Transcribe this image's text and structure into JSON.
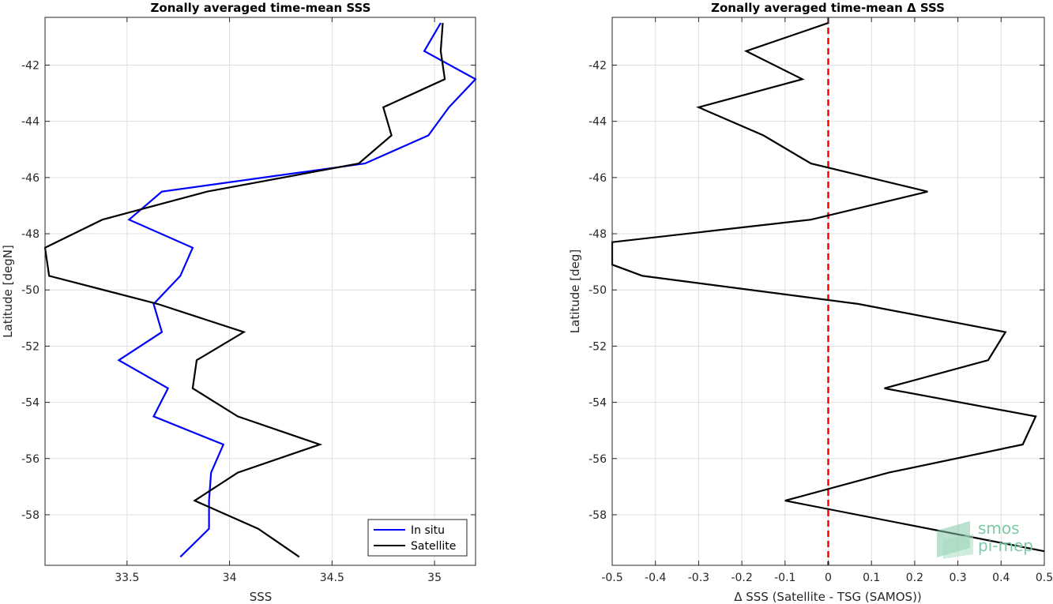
{
  "chart_data": [
    {
      "type": "line",
      "title": "Zonally averaged time-mean SSS",
      "xlabel": "SSS",
      "ylabel": "Latitude [degN]",
      "xlim": [
        33.1,
        35.2
      ],
      "ylim": [
        -59.8,
        -40.3
      ],
      "xticks": [
        33.5,
        34,
        34.5,
        35
      ],
      "xtick_labels": [
        "33.5",
        "34",
        "34.5",
        "35"
      ],
      "yticks": [
        -58,
        -56,
        -54,
        -52,
        -50,
        -48,
        -46,
        -44,
        -42
      ],
      "ytick_labels": [
        "-58",
        "-56",
        "-54",
        "-52",
        "-50",
        "-48",
        "-46",
        "-44",
        "-42"
      ],
      "grid": true,
      "legend": "bottom-right",
      "series": [
        {
          "name": "In situ",
          "color": "#0000ff",
          "points": [
            [
              35.03,
              -40.5
            ],
            [
              34.95,
              -41.5
            ],
            [
              35.2,
              -42.5
            ],
            [
              35.07,
              -43.5
            ],
            [
              34.97,
              -44.5
            ],
            [
              34.66,
              -45.5
            ],
            [
              33.67,
              -46.5
            ],
            [
              33.51,
              -47.5
            ],
            [
              33.82,
              -48.5
            ],
            [
              33.76,
              -49.5
            ],
            [
              33.63,
              -50.5
            ],
            [
              33.67,
              -51.5
            ],
            [
              33.46,
              -52.5
            ],
            [
              33.7,
              -53.5
            ],
            [
              33.63,
              -54.5
            ],
            [
              33.97,
              -55.5
            ],
            [
              33.91,
              -56.5
            ],
            [
              33.9,
              -57.5
            ],
            [
              33.9,
              -58.5
            ],
            [
              33.76,
              -59.5
            ]
          ]
        },
        {
          "name": "Satellite",
          "color": "#000000",
          "points": [
            [
              35.04,
              -40.5
            ],
            [
              35.03,
              -41.5
            ],
            [
              35.05,
              -42.5
            ],
            [
              34.75,
              -43.5
            ],
            [
              34.79,
              -44.5
            ],
            [
              34.63,
              -45.5
            ],
            [
              33.89,
              -46.5
            ],
            [
              33.38,
              -47.5
            ],
            [
              33.1,
              -48.5
            ],
            [
              33.12,
              -49.5
            ],
            [
              33.65,
              -50.5
            ],
            [
              34.07,
              -51.5
            ],
            [
              33.84,
              -52.5
            ],
            [
              33.82,
              -53.5
            ],
            [
              34.04,
              -54.5
            ],
            [
              34.44,
              -55.5
            ],
            [
              34.04,
              -56.5
            ],
            [
              33.83,
              -57.5
            ],
            [
              34.14,
              -58.5
            ],
            [
              34.34,
              -59.5
            ]
          ]
        }
      ]
    },
    {
      "type": "line",
      "title": "Zonally averaged time-mean Δ SSS",
      "xlabel": "Δ SSS (Satellite - TSG (SAMOS))",
      "ylabel": "Latitude [deg]",
      "xlim": [
        -0.5,
        0.5
      ],
      "ylim": [
        -59.8,
        -40.3
      ],
      "xticks": [
        -0.5,
        -0.4,
        -0.3,
        -0.2,
        -0.1,
        0,
        0.1,
        0.2,
        0.3,
        0.4,
        0.5
      ],
      "xtick_labels": [
        "-0.5",
        "-0.4",
        "-0.3",
        "-0.2",
        "-0.1",
        "0",
        "0.1",
        "0.2",
        "0.3",
        "0.4",
        "0.5"
      ],
      "yticks": [
        -58,
        -56,
        -54,
        -52,
        -50,
        -48,
        -46,
        -44,
        -42
      ],
      "ytick_labels": [
        "-58",
        "-56",
        "-54",
        "-52",
        "-50",
        "-48",
        "-46",
        "-44",
        "-42"
      ],
      "grid": true,
      "reference_line": {
        "x": 0,
        "color": "#ff0000",
        "style": "dashed"
      },
      "series": [
        {
          "name": "",
          "color": "#000000",
          "points": [
            [
              0.0,
              -40.5
            ],
            [
              -0.19,
              -41.5
            ],
            [
              -0.06,
              -42.5
            ],
            [
              -0.3,
              -43.5
            ],
            [
              -0.15,
              -44.5
            ],
            [
              -0.04,
              -45.5
            ],
            [
              0.23,
              -46.5
            ],
            [
              -0.04,
              -47.5
            ],
            [
              -0.5,
              -48.3
            ],
            [
              -0.5,
              -49.1
            ],
            [
              -0.43,
              -49.5
            ],
            [
              0.07,
              -50.5
            ],
            [
              0.41,
              -51.5
            ],
            [
              0.37,
              -52.5
            ],
            [
              0.13,
              -53.5
            ],
            [
              0.48,
              -54.5
            ],
            [
              0.45,
              -55.5
            ],
            [
              0.14,
              -56.5
            ],
            [
              -0.1,
              -57.5
            ],
            [
              0.5,
              -59.3
            ]
          ]
        }
      ]
    }
  ],
  "logo": {
    "line1": "smos",
    "line2": "pi-mep",
    "color": "#7fc9a4"
  }
}
